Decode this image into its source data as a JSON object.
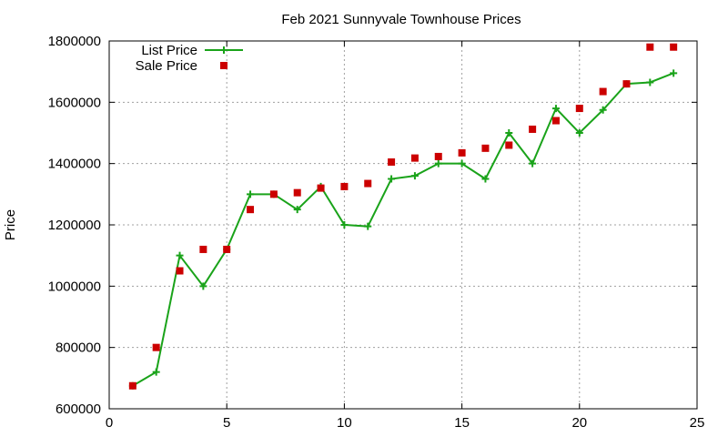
{
  "chart_data": {
    "type": "line",
    "title": "Feb 2021 Sunnyvale Townhouse Prices",
    "xlabel": "",
    "ylabel": "Price",
    "xlim": [
      0,
      25
    ],
    "ylim": [
      600000,
      1800000
    ],
    "xticks": [
      0,
      5,
      10,
      15,
      20,
      25
    ],
    "yticks": [
      600000,
      800000,
      1000000,
      1200000,
      1400000,
      1600000,
      1800000
    ],
    "xtick_labels": [
      "0",
      "5",
      "10",
      "15",
      "20",
      "25"
    ],
    "ytick_labels": [
      "600000",
      "800000",
      "1000000",
      "1200000",
      "1400000",
      "1600000",
      "1800000"
    ],
    "grid": true,
    "legend_position": "top-left",
    "series": [
      {
        "name": "List Price",
        "style": "line-plus",
        "color": "#1aa31a",
        "x": [
          1,
          2,
          3,
          4,
          5,
          6,
          7,
          8,
          9,
          10,
          11,
          12,
          13,
          14,
          15,
          16,
          17,
          18,
          19,
          20,
          21,
          22,
          23,
          24
        ],
        "y": [
          675000,
          720000,
          1100000,
          1000000,
          1120000,
          1300000,
          1300000,
          1250000,
          1325000,
          1200000,
          1195000,
          1350000,
          1360000,
          1400000,
          1400000,
          1350000,
          1500000,
          1400000,
          1580000,
          1500000,
          1575000,
          1660000,
          1665000,
          1695000
        ]
      },
      {
        "name": "Sale Price",
        "style": "square",
        "color": "#cc0000",
        "x": [
          1,
          2,
          3,
          4,
          5,
          6,
          7,
          8,
          9,
          10,
          11,
          12,
          13,
          14,
          15,
          16,
          17,
          18,
          19,
          20,
          21,
          22,
          23,
          24
        ],
        "y": [
          675000,
          800000,
          1050000,
          1120000,
          1120000,
          1250000,
          1300000,
          1305000,
          1320000,
          1325000,
          1335000,
          1405000,
          1418000,
          1423000,
          1435000,
          1450000,
          1460000,
          1512000,
          1540000,
          1580000,
          1635000,
          1660000,
          1780000,
          1780000
        ]
      }
    ]
  }
}
